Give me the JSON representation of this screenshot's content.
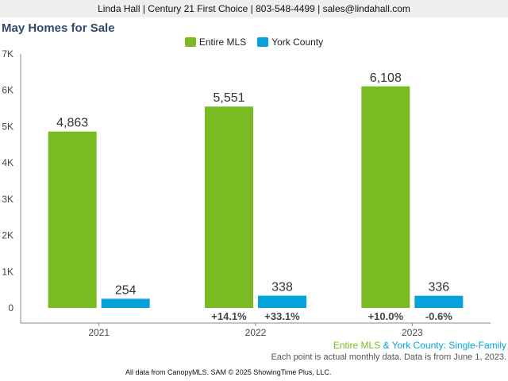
{
  "header": {
    "contact": "Linda Hall | Century 21 First Choice | 803-548-4499 | sales@lindahall.com"
  },
  "title": "May Homes for Sale",
  "colors": {
    "entire_mls": "#78bb22",
    "york_county": "#05a3d9"
  },
  "footer": {
    "series_a": "Entire MLS",
    "amp": " & ",
    "series_b": "York County",
    "suffix": ": Single-Family",
    "note": "Each point is actual monthly data. Data is from June 1, 2023.",
    "source": "All data from CanopyMLS. SAM © 2025 ShowingTime Plus, LLC."
  },
  "chart_data": {
    "type": "bar",
    "title": "May Homes for Sale",
    "categories": [
      "2021",
      "2022",
      "2023"
    ],
    "ylim": [
      0,
      7000
    ],
    "yticks": [
      "0",
      "1K",
      "2K",
      "3K",
      "4K",
      "5K",
      "6K",
      "7K"
    ],
    "ytick_values": [
      0,
      1000,
      2000,
      3000,
      4000,
      5000,
      6000,
      7000
    ],
    "grid": false,
    "legend_position": "top",
    "series": [
      {
        "name": "Entire MLS",
        "color": "#78bb22",
        "values": [
          4863,
          5551,
          6108
        ],
        "value_labels": [
          "4,863",
          "5,551",
          "6,108"
        ],
        "change_labels": [
          "",
          "+14.1%",
          "+10.0%"
        ]
      },
      {
        "name": "York County",
        "color": "#05a3d9",
        "values": [
          254,
          338,
          336
        ],
        "value_labels": [
          "254",
          "338",
          "336"
        ],
        "change_labels": [
          "",
          "+33.1%",
          "-0.6%"
        ]
      }
    ]
  }
}
